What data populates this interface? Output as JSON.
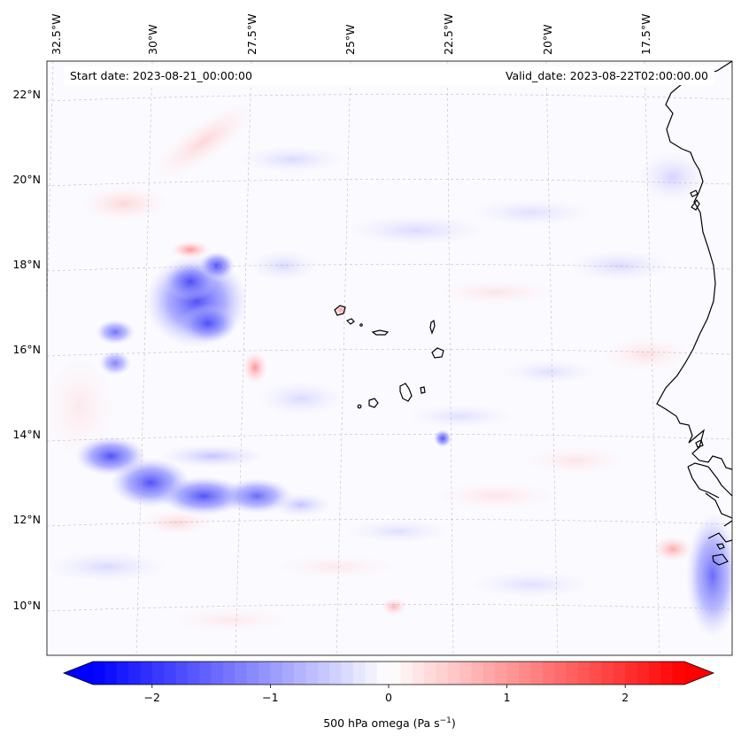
{
  "header": {
    "start_date": "Start date: 2023-08-21_00:00:00",
    "valid_date": "Valid_date: 2023-08-22T02:00:00.00"
  },
  "map": {
    "lon_labels": [
      "32.5°W",
      "30°W",
      "27.5°W",
      "25°W",
      "22.5°W",
      "20°W",
      "17.5°W"
    ],
    "lat_labels": [
      "22°N",
      "20°N",
      "18°N",
      "16°N",
      "14°N",
      "12°N",
      "10°N"
    ],
    "lat_values": [
      22,
      20,
      18,
      16,
      14,
      12,
      10
    ],
    "lat_range": [
      8.8,
      22.8
    ],
    "lon_values": [
      -32.5,
      -30,
      -27.5,
      -25,
      -22.5,
      -20,
      -17.5
    ],
    "field": "500 hPa omega",
    "features": {
      "strong_ascent_clusters": [
        "18-16.5N 30-28W",
        "13.5-12N 32-26W"
      ],
      "islands": "Cape Verde",
      "coastline": "West Africa"
    }
  },
  "colorbar": {
    "label": "500 hPa omega (Pa s",
    "label_sup": "−1",
    "label_close": ")",
    "ticks": [
      "−2",
      "−1",
      "0",
      "1",
      "2"
    ],
    "tick_values": [
      -2,
      -1,
      0,
      1,
      2
    ],
    "vmin": -2.5,
    "vmax": 2.5,
    "colormap": "bwr",
    "extend": "both"
  }
}
